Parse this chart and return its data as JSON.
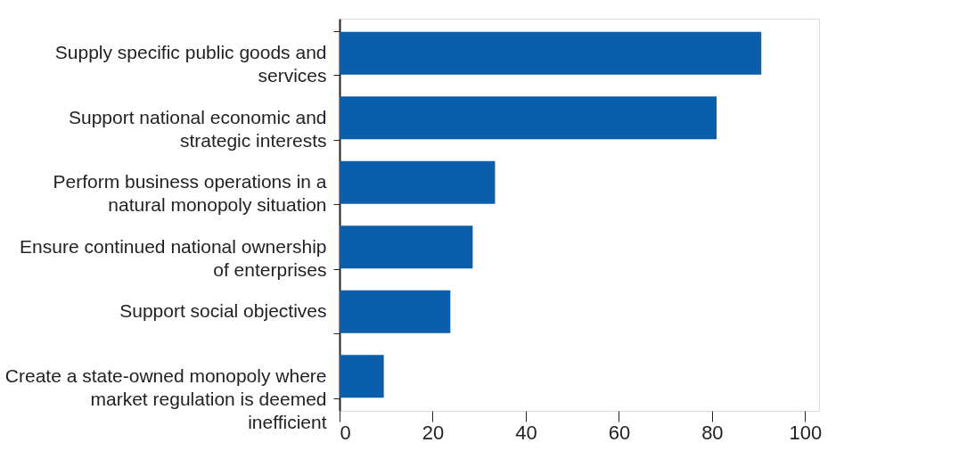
{
  "chart_data": {
    "type": "bar",
    "orientation": "horizontal",
    "categories": [
      "Supply specific public goods and services",
      "Support national economic and strategic interests",
      "Perform business operations in a natural monopoly situation",
      "Ensure continued national ownership of enterprises",
      "Support social objectives",
      "Create a state-owned monopoly where market regulation is deemed inefficient"
    ],
    "values": [
      90.6,
      81,
      33.4,
      28.6,
      23.8,
      9.5
    ],
    "color": "#0a5eab",
    "xlim": [
      0,
      103
    ],
    "xticks": [
      0,
      20,
      40,
      60,
      80,
      100
    ],
    "grid": false
  }
}
